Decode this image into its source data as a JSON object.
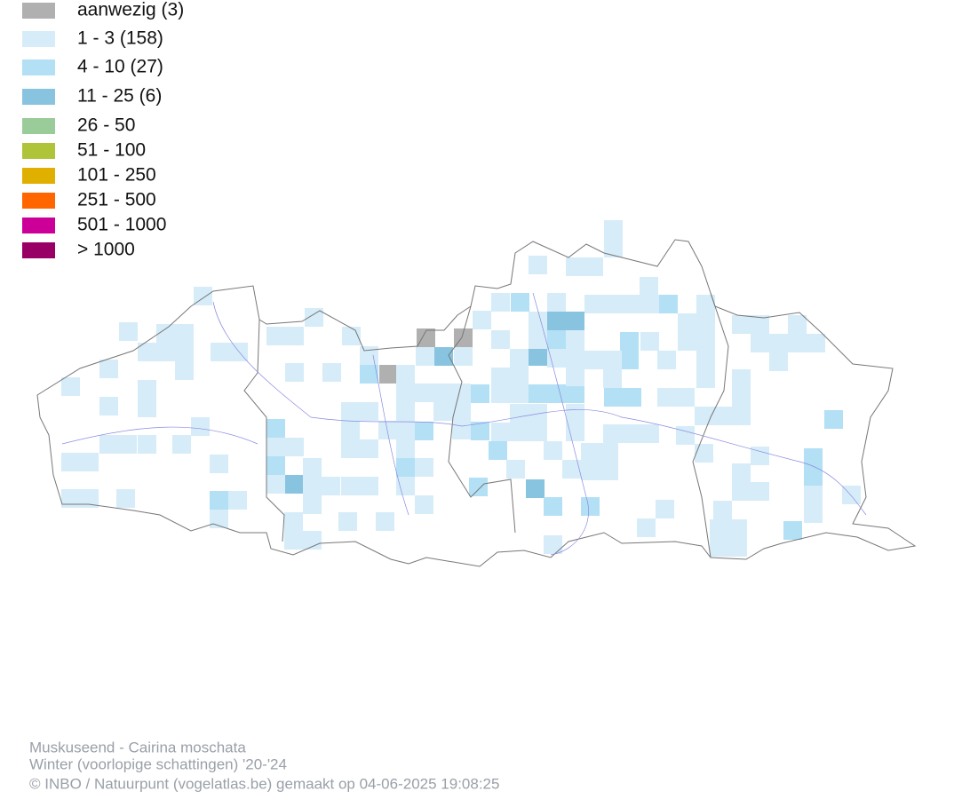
{
  "legend": {
    "items": [
      {
        "label": "aanwezig (3)",
        "color": "#b0b0b0"
      },
      {
        "label": "1 - 3 (158)",
        "color": "#d6ecf8"
      },
      {
        "label": "4 - 10 (27)",
        "color": "#b3e0f5"
      },
      {
        "label": "11 - 25 (6)",
        "color": "#88c4e0"
      },
      {
        "label": "26 - 50",
        "color": "#99cc99"
      },
      {
        "label": "51 - 100",
        "color": "#b0c43a"
      },
      {
        "label": "101 - 250",
        "color": "#e0b000"
      },
      {
        "label": "251 - 500",
        "color": "#ff6600"
      },
      {
        "label": "501 - 1000",
        "color": "#cc0099"
      },
      {
        "label": "> 1000",
        "color": "#990066"
      }
    ]
  },
  "footer": {
    "lines": [
      "Muskuseend - Cairina moschata",
      "Winter (voorlopige schattingen) '20-'24",
      "© INBO / Natuurpunt (vogelatlas.be) gemaakt op 04-06-2025 19:08:25"
    ]
  }
}
